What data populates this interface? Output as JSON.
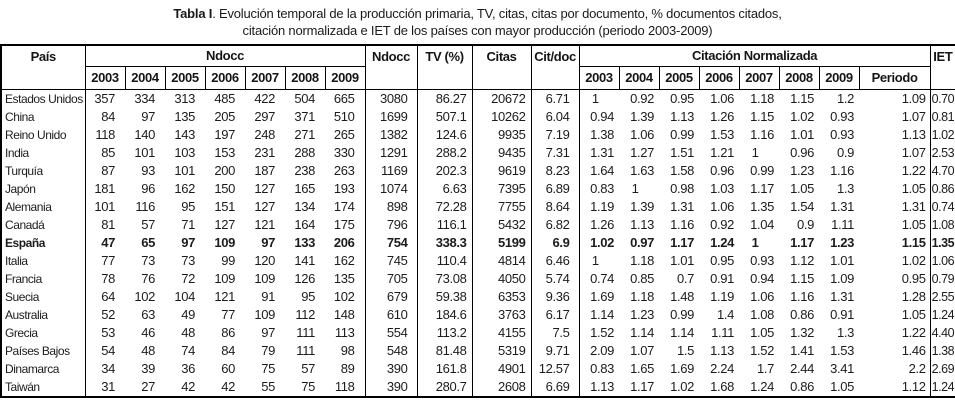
{
  "title": {
    "bold": "Tabla I",
    "line1_rest": ". Evolución temporal de la producción primaria, TV, citas, citas por documento, % documentos citados,",
    "line2": "citación normalizada e IET de los países con mayor producción (periodo 2003-2009)"
  },
  "table": {
    "headers": {
      "pais": "País",
      "ndocc_group": "Ndocc",
      "ndocc_years": [
        "2003",
        "2004",
        "2005",
        "2006",
        "2007",
        "2008",
        "2009"
      ],
      "ndocc_total": "Ndocc",
      "tv": "TV (%)",
      "citas": "Citas",
      "cit_doc": "Cit/doc",
      "cn_group": "Citación Normalizada",
      "cn_years": [
        "2003",
        "2004",
        "2005",
        "2006",
        "2007",
        "2008",
        "2009"
      ],
      "periodo": "Periodo",
      "iet": "IET"
    },
    "rows": [
      {
        "pais": "Estados Unidos",
        "bold": false,
        "ndocc": [
          "357",
          "334",
          "313",
          "485",
          "422",
          "504",
          "665"
        ],
        "ndocc_total": "3080",
        "tv": "86.27",
        "citas": "20672",
        "cit_doc": "6.71",
        "cn": [
          "1",
          "0.92",
          "0.95",
          "1.06",
          "1.18",
          "1.15",
          "1.2"
        ],
        "periodo": "1.09",
        "iet": "0.70"
      },
      {
        "pais": "China",
        "bold": false,
        "ndocc": [
          "84",
          "97",
          "135",
          "205",
          "297",
          "371",
          "510"
        ],
        "ndocc_total": "1699",
        "tv": "507.1",
        "citas": "10262",
        "cit_doc": "6.04",
        "cn": [
          "0.94",
          "1.39",
          "1.13",
          "1.26",
          "1.15",
          "1.02",
          "0.93"
        ],
        "periodo": "1.07",
        "iet": "0.81"
      },
      {
        "pais": "Reino Unido",
        "bold": false,
        "ndocc": [
          "118",
          "140",
          "143",
          "197",
          "248",
          "271",
          "265"
        ],
        "ndocc_total": "1382",
        "tv": "124.6",
        "citas": "9935",
        "cit_doc": "7.19",
        "cn": [
          "1.38",
          "1.06",
          "0.99",
          "1.53",
          "1.16",
          "1.01",
          "0.93"
        ],
        "periodo": "1.13",
        "iet": "1.02"
      },
      {
        "pais": "India",
        "bold": false,
        "ndocc": [
          "85",
          "101",
          "103",
          "153",
          "231",
          "288",
          "330"
        ],
        "ndocc_total": "1291",
        "tv": "288.2",
        "citas": "9435",
        "cit_doc": "7.31",
        "cn": [
          "1.31",
          "1.27",
          "1.51",
          "1.21",
          "1",
          "0.96",
          "0.9"
        ],
        "periodo": "1.07",
        "iet": "2.53"
      },
      {
        "pais": "Turquía",
        "bold": false,
        "ndocc": [
          "87",
          "93",
          "101",
          "200",
          "187",
          "238",
          "263"
        ],
        "ndocc_total": "1169",
        "tv": "202.3",
        "citas": "9619",
        "cit_doc": "8.23",
        "cn": [
          "1.64",
          "1.63",
          "1.58",
          "0.96",
          "0.99",
          "1.23",
          "1.16"
        ],
        "periodo": "1.22",
        "iet": "4.70"
      },
      {
        "pais": "Japón",
        "bold": false,
        "ndocc": [
          "181",
          "96",
          "162",
          "150",
          "127",
          "165",
          "193"
        ],
        "ndocc_total": "1074",
        "tv": "6.63",
        "citas": "7395",
        "cit_doc": "6.89",
        "cn": [
          "0.83",
          "1",
          "0.98",
          "1.03",
          "1.17",
          "1.05",
          "1.3"
        ],
        "periodo": "1.05",
        "iet": "0.86"
      },
      {
        "pais": "Alemania",
        "bold": false,
        "ndocc": [
          "101",
          "116",
          "95",
          "151",
          "127",
          "134",
          "174"
        ],
        "ndocc_total": "898",
        "tv": "72.28",
        "citas": "7755",
        "cit_doc": "8.64",
        "cn": [
          "1.19",
          "1.39",
          "1.31",
          "1.06",
          "1.35",
          "1.54",
          "1.31"
        ],
        "periodo": "1.31",
        "iet": "0.74"
      },
      {
        "pais": "Canadá",
        "bold": false,
        "ndocc": [
          "81",
          "57",
          "71",
          "127",
          "121",
          "164",
          "175"
        ],
        "ndocc_total": "796",
        "tv": "116.1",
        "citas": "5432",
        "cit_doc": "6.82",
        "cn": [
          "1.26",
          "1.13",
          "1.16",
          "0.92",
          "1.04",
          "0.9",
          "1.11"
        ],
        "periodo": "1.05",
        "iet": "1.08"
      },
      {
        "pais": "España",
        "bold": true,
        "ndocc": [
          "47",
          "65",
          "97",
          "109",
          "97",
          "133",
          "206"
        ],
        "ndocc_total": "754",
        "tv": "338.3",
        "citas": "5199",
        "cit_doc": "6.9",
        "cn": [
          "1.02",
          "0.97",
          "1.17",
          "1.24",
          "1",
          "1.17",
          "1.23"
        ],
        "periodo": "1.15",
        "iet": "1.35"
      },
      {
        "pais": "Italia",
        "bold": false,
        "ndocc": [
          "77",
          "73",
          "73",
          "99",
          "120",
          "141",
          "162"
        ],
        "ndocc_total": "745",
        "tv": "110.4",
        "citas": "4814",
        "cit_doc": "6.46",
        "cn": [
          "1",
          "1.18",
          "1.01",
          "0.95",
          "0.93",
          "1.12",
          "1.01"
        ],
        "periodo": "1.02",
        "iet": "1.06"
      },
      {
        "pais": "Francia",
        "bold": false,
        "ndocc": [
          "78",
          "76",
          "72",
          "109",
          "109",
          "126",
          "135"
        ],
        "ndocc_total": "705",
        "tv": "73.08",
        "citas": "4050",
        "cit_doc": "5.74",
        "cn": [
          "0.74",
          "0.85",
          "0.7",
          "0.91",
          "0.94",
          "1.15",
          "1.09"
        ],
        "periodo": "0.95",
        "iet": "0.79"
      },
      {
        "pais": "Suecia",
        "bold": false,
        "ndocc": [
          "64",
          "102",
          "104",
          "121",
          "91",
          "95",
          "102"
        ],
        "ndocc_total": "679",
        "tv": "59.38",
        "citas": "6353",
        "cit_doc": "9.36",
        "cn": [
          "1.69",
          "1.18",
          "1.48",
          "1.19",
          "1.06",
          "1.16",
          "1.31"
        ],
        "periodo": "1.28",
        "iet": "2.55"
      },
      {
        "pais": "Australia",
        "bold": false,
        "ndocc": [
          "52",
          "63",
          "49",
          "77",
          "109",
          "112",
          "148"
        ],
        "ndocc_total": "610",
        "tv": "184.6",
        "citas": "3763",
        "cit_doc": "6.17",
        "cn": [
          "1.14",
          "1.23",
          "0.99",
          "1.4",
          "1.08",
          "0.86",
          "0.91"
        ],
        "periodo": "1.05",
        "iet": "1.24"
      },
      {
        "pais": "Grecia",
        "bold": false,
        "ndocc": [
          "53",
          "46",
          "48",
          "86",
          "97",
          "111",
          "113"
        ],
        "ndocc_total": "554",
        "tv": "113.2",
        "citas": "4155",
        "cit_doc": "7.5",
        "cn": [
          "1.52",
          "1.14",
          "1.14",
          "1.11",
          "1.05",
          "1.32",
          "1.3"
        ],
        "periodo": "1.22",
        "iet": "4.40"
      },
      {
        "pais": "Países Bajos",
        "bold": false,
        "ndocc": [
          "54",
          "48",
          "74",
          "84",
          "79",
          "111",
          "98"
        ],
        "ndocc_total": "548",
        "tv": "81.48",
        "citas": "5319",
        "cit_doc": "9.71",
        "cn": [
          "2.09",
          "1.07",
          "1.5",
          "1.13",
          "1.52",
          "1.41",
          "1.53"
        ],
        "periodo": "1.46",
        "iet": "1.38"
      },
      {
        "pais": "Dinamarca",
        "bold": false,
        "ndocc": [
          "34",
          "39",
          "36",
          "60",
          "75",
          "57",
          "89"
        ],
        "ndocc_total": "390",
        "tv": "161.8",
        "citas": "4901",
        "cit_doc": "12.57",
        "cn": [
          "0.83",
          "1.65",
          "1.69",
          "2.24",
          "1.7",
          "2.44",
          "3.41"
        ],
        "periodo": "2.2",
        "iet": "2.69"
      },
      {
        "pais": "Taiwán",
        "bold": false,
        "ndocc": [
          "31",
          "27",
          "42",
          "42",
          "55",
          "75",
          "118"
        ],
        "ndocc_total": "390",
        "tv": "280.7",
        "citas": "2608",
        "cit_doc": "6.69",
        "cn": [
          "1.13",
          "1.17",
          "1.02",
          "1.68",
          "1.24",
          "0.86",
          "1.05"
        ],
        "periodo": "1.12",
        "iet": "1.24"
      }
    ]
  }
}
